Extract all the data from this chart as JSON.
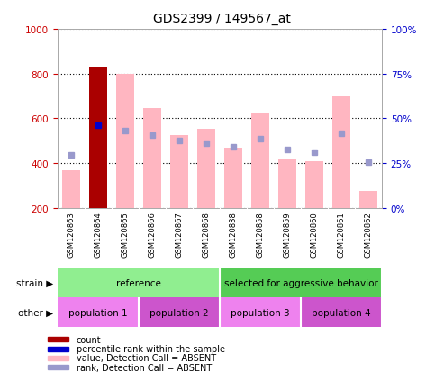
{
  "title": "GDS2399 / 149567_at",
  "samples": [
    "GSM120863",
    "GSM120864",
    "GSM120865",
    "GSM120866",
    "GSM120867",
    "GSM120868",
    "GSM120838",
    "GSM120858",
    "GSM120859",
    "GSM120860",
    "GSM120861",
    "GSM120862"
  ],
  "pink_bar_values": [
    370,
    830,
    800,
    645,
    525,
    555,
    470,
    625,
    415,
    410,
    700,
    275
  ],
  "blue_square_values": [
    435,
    570,
    545,
    525,
    500,
    490,
    475,
    510,
    460,
    450,
    535,
    405
  ],
  "is_red": [
    false,
    true,
    false,
    false,
    false,
    false,
    false,
    false,
    false,
    false,
    false,
    false
  ],
  "has_blue_solid": [
    false,
    true,
    false,
    false,
    false,
    false,
    false,
    false,
    false,
    false,
    false,
    false
  ],
  "y_min": 200,
  "y_max": 1000,
  "y_ticks_left": [
    200,
    400,
    600,
    800,
    1000
  ],
  "y_ticks_right_labels": [
    "0%",
    "25%",
    "50%",
    "75%",
    "100%"
  ],
  "y_ticks_right_vals": [
    200,
    400,
    600,
    800,
    1000
  ],
  "strain_groups": [
    {
      "label": "reference",
      "start": 0,
      "end": 6,
      "color": "#90ee90"
    },
    {
      "label": "selected for aggressive behavior",
      "start": 6,
      "end": 12,
      "color": "#55cc55"
    }
  ],
  "other_groups": [
    {
      "label": "population 1",
      "start": 0,
      "end": 3,
      "color": "#ee82ee"
    },
    {
      "label": "population 2",
      "start": 3,
      "end": 6,
      "color": "#cc55cc"
    },
    {
      "label": "population 3",
      "start": 6,
      "end": 9,
      "color": "#ee82ee"
    },
    {
      "label": "population 4",
      "start": 9,
      "end": 12,
      "color": "#cc55cc"
    }
  ],
  "pink_bar_color": "#ffb6c1",
  "red_bar_color": "#aa0000",
  "blue_square_color": "#9999cc",
  "blue_solid_color": "#0000cc",
  "bar_bottom": 200,
  "left_tick_color": "#cc0000",
  "right_tick_color": "#0000cc",
  "grid_color": "#000000",
  "label_bg_color": "#cccccc",
  "legend_labels": [
    "count",
    "percentile rank within the sample",
    "value, Detection Call = ABSENT",
    "rank, Detection Call = ABSENT"
  ],
  "legend_colors": [
    "#aa0000",
    "#0000cc",
    "#ffb6c1",
    "#9999cc"
  ]
}
